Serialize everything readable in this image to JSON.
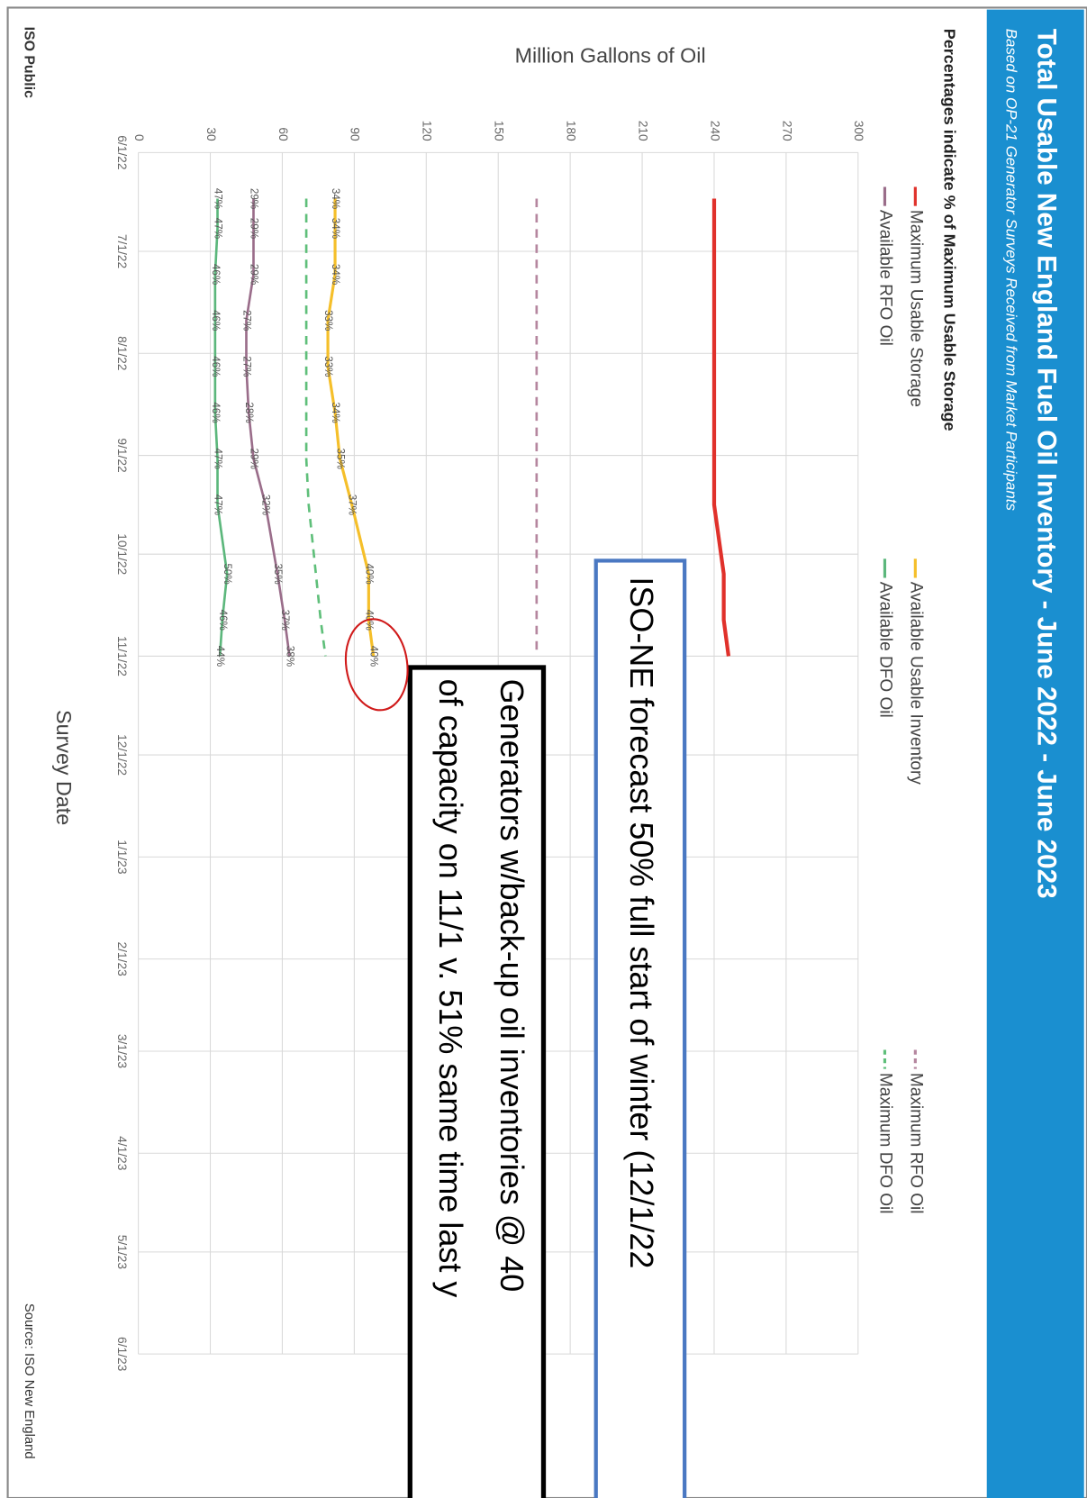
{
  "chart_data": {
    "type": "line",
    "title": "Total Usable New England Fuel Oil Inventory - June 2022 - June 2023",
    "subtitle": "Based on OP-21 Generator Surveys Received from Market Participants",
    "note": "Percentages indicate % of Maximum Usable Storage",
    "y_label": "Million Gallons of Oil",
    "x_label": "Survey Date",
    "footer_left": "ISO Public",
    "footer_right": "Source: ISO New England",
    "x": [
      "6/15/22",
      "6/24/22",
      "7/8/22",
      "7/22/22",
      "8/5/22",
      "8/19/22",
      "9/2/22",
      "9/16/22",
      "10/7/22",
      "10/21/22",
      "11/1/22"
    ],
    "xlim": [
      "6/1/22",
      "6/1/23"
    ],
    "xticks": [
      "6/1/22",
      "7/1/22",
      "8/1/22",
      "9/1/22",
      "10/1/22",
      "11/1/22",
      "12/1/22",
      "1/1/23",
      "2/1/23",
      "3/1/23",
      "4/1/23",
      "5/1/23",
      "6/1/23"
    ],
    "ylim": [
      0,
      300
    ],
    "yticks": [
      0,
      30,
      60,
      90,
      120,
      150,
      180,
      210,
      240,
      270,
      300
    ],
    "grid": true,
    "series": [
      {
        "name": "Maximum Usable Storage",
        "color": "#e0312b",
        "dash": false,
        "width": 4,
        "values": [
          240,
          240,
          240,
          240,
          240,
          240,
          240,
          240,
          244,
          244,
          246
        ]
      },
      {
        "name": "Available Usable Inventory",
        "color": "#f5bf2a",
        "dash": false,
        "width": 3,
        "values": [
          82,
          82,
          82,
          79,
          79,
          82,
          84,
          89,
          96,
          96,
          98
        ],
        "point_labels": [
          "34%",
          "34%",
          "34%",
          "33%",
          "33%",
          "34%",
          "35%",
          "37%",
          "40%",
          "40%",
          "40%"
        ]
      },
      {
        "name": "Maximum RFO Oil",
        "color": "#b5869f",
        "dash": true,
        "width": 2.5,
        "values": [
          166,
          166,
          166,
          166,
          166,
          166,
          166,
          166,
          166,
          166,
          166
        ]
      },
      {
        "name": "Available RFO Oil",
        "color": "#9a6d8a",
        "dash": false,
        "width": 2.5,
        "values": [
          48,
          48,
          48,
          45,
          45,
          46,
          48,
          53,
          58,
          61,
          63
        ],
        "point_labels": [
          "29%",
          "29%",
          "29%",
          "27%",
          "27%",
          "28%",
          "29%",
          "32%",
          "35%",
          "37%",
          "38%"
        ]
      },
      {
        "name": "Available DFO Oil",
        "color": "#5cb77c",
        "dash": false,
        "width": 2.5,
        "values": [
          33,
          33,
          32,
          32,
          32,
          32,
          33,
          33,
          37,
          35,
          34
        ],
        "point_labels": [
          "47%",
          "47%",
          "46%",
          "46%",
          "46%",
          "46%",
          "47%",
          "47%",
          "50%",
          "46%",
          "44%"
        ]
      },
      {
        "name": "Maximum DFO Oil",
        "color": "#5fbf7a",
        "dash": true,
        "width": 2.5,
        "values": [
          70,
          70,
          70,
          70,
          70,
          70,
          70,
          71,
          74,
          76,
          78
        ]
      }
    ],
    "annotations": [
      {
        "lines": [
          "ISO-NE forecast 50% full start of winter (12/1/22"
        ]
      },
      {
        "lines": [
          "Generators w/back-up oil inventories @ 40",
          "of capacity on 11/1 v. 51% same time last y"
        ]
      }
    ]
  }
}
